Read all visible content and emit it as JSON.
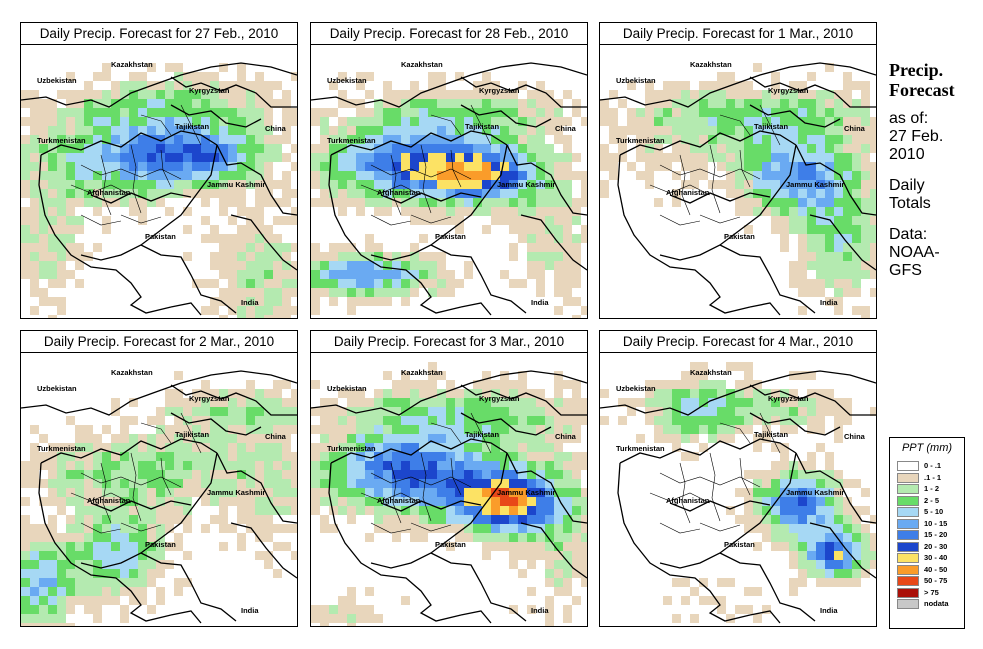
{
  "panels": [
    {
      "title": "Daily Precip. Forecast for  27 Feb., 2010",
      "seed": 11,
      "scheme": "a"
    },
    {
      "title": "Daily Precip. Forecast for  28 Feb., 2010",
      "seed": 23,
      "scheme": "b"
    },
    {
      "title": "Daily Precip. Forecast for  1 Mar., 2010",
      "seed": 37,
      "scheme": "c"
    },
    {
      "title": "Daily Precip. Forecast for  2 Mar., 2010",
      "seed": 41,
      "scheme": "d"
    },
    {
      "title": "Daily Precip. Forecast for  3 Mar., 2010",
      "seed": 53,
      "scheme": "e"
    },
    {
      "title": "Daily Precip. Forecast for  4 Mar., 2010",
      "seed": 67,
      "scheme": "f"
    }
  ],
  "map_labels": {
    "kazakhstan": "Kazakhstan",
    "uzbekistan": "Uzbekistan",
    "kyrgyzstan": "Kyrgyzstan",
    "tajikistan": "Tajikistan",
    "turkmenistan": "Turkmenistan",
    "china": "China",
    "afghanistan": "Afghanistan",
    "jammu_kashmir": "Jammu Kashmir",
    "pakistan": "Pakistan",
    "india": "India"
  },
  "side_panel": {
    "title_line1": "Precip.",
    "title_line2": "Forecast",
    "asof_line1": "as of:",
    "asof_line2": "27 Feb.",
    "asof_line3": "2010",
    "totals_line1": "Daily",
    "totals_line2": "Totals",
    "data_line1": "Data:",
    "data_line2": "NOAA-",
    "data_line3": "GFS"
  },
  "legend": {
    "title": "PPT (mm)",
    "items": [
      {
        "label": "0 - .1",
        "color": "#ffffff"
      },
      {
        "label": ".1 - 1",
        "color": "#e8d6bc"
      },
      {
        "label": "1 - 2",
        "color": "#b4eab0"
      },
      {
        "label": "2 - 5",
        "color": "#68dc68"
      },
      {
        "label": "5 - 10",
        "color": "#a6d8f4"
      },
      {
        "label": "10 - 15",
        "color": "#6aaaf2"
      },
      {
        "label": "15 - 20",
        "color": "#3e7ee8"
      },
      {
        "label": "20 - 30",
        "color": "#1c46cc"
      },
      {
        "label": "30 - 40",
        "color": "#fce264"
      },
      {
        "label": "40 - 50",
        "color": "#fa9c2a"
      },
      {
        "label": "50 - 75",
        "color": "#e84818"
      },
      {
        "label": "> 75",
        "color": "#aa1008"
      },
      {
        "label": "nodata",
        "color": "#c8c8c8"
      }
    ]
  }
}
